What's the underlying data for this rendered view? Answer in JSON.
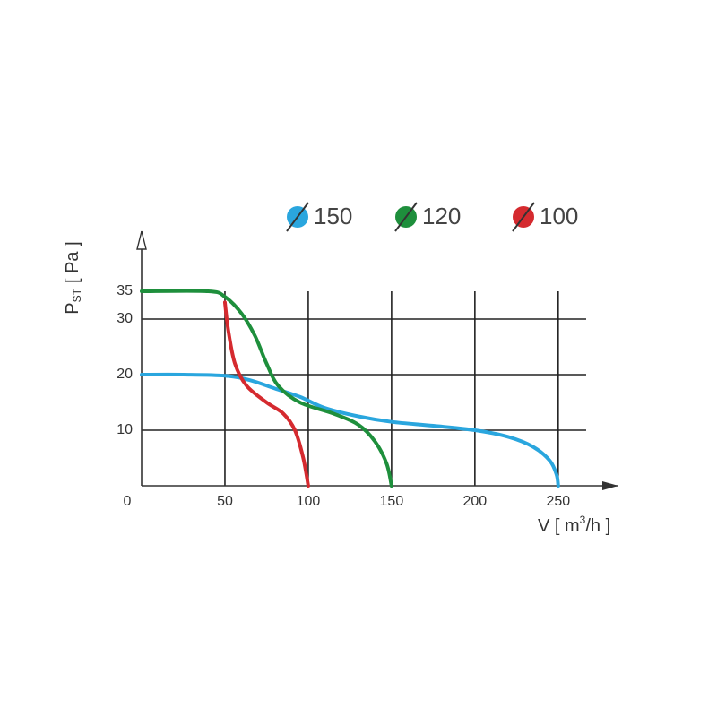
{
  "chart_data": {
    "type": "line",
    "xlabel": {
      "main": "V [ m",
      "sup": "3",
      "unit": "/h ]"
    },
    "ylabel": {
      "main": "P",
      "sub": "ST",
      "unit": "[ Pa ]"
    },
    "xlim": [
      0,
      270
    ],
    "ylim": [
      0,
      35
    ],
    "xticks": [
      0,
      50,
      100,
      150,
      200,
      250
    ],
    "yticks": [
      10,
      20,
      30,
      35
    ],
    "grid": true,
    "legend": "top",
    "series": [
      {
        "name": "150",
        "color": "#2aa6de",
        "x": [
          0,
          25,
          50,
          65,
          80,
          95,
          110,
          130,
          150,
          175,
          200,
          220,
          235,
          245,
          249,
          250
        ],
        "values": [
          20,
          20,
          19.8,
          19,
          17.5,
          16,
          14,
          12.5,
          11.5,
          10.8,
          10,
          8.8,
          7,
          4.5,
          2,
          0
        ]
      },
      {
        "name": "120",
        "color": "#1e8f3c",
        "x": [
          0,
          40,
          50,
          60,
          68,
          75,
          82,
          95,
          115,
          130,
          140,
          147,
          150
        ],
        "values": [
          35,
          35,
          34,
          31,
          27,
          22,
          18,
          15,
          13,
          11,
          8,
          4,
          0
        ]
      },
      {
        "name": "100",
        "color": "#d52a2f",
        "x": [
          50,
          52,
          56,
          63,
          75,
          85,
          92,
          97,
          100
        ],
        "values": [
          33,
          28,
          22,
          18,
          15,
          13,
          10,
          5,
          0
        ]
      }
    ]
  }
}
